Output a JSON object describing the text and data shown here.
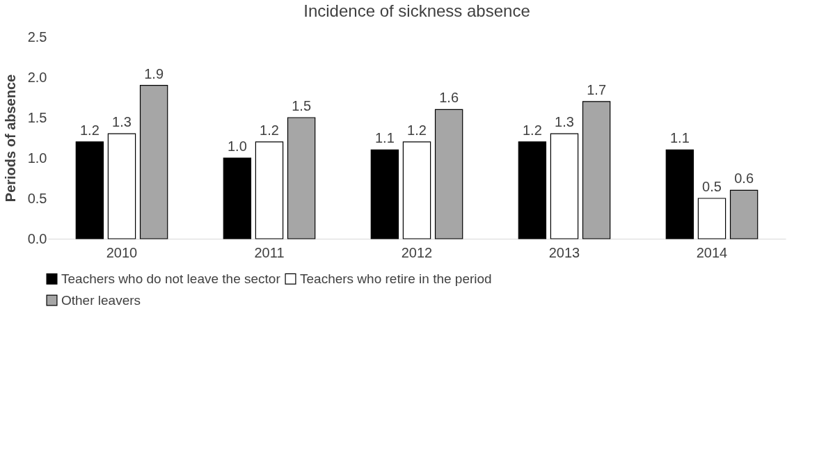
{
  "chart_data": {
    "type": "bar",
    "title": "Incidence of sickness absence",
    "ylabel": "Periods of absence",
    "categories": [
      "2010",
      "2011",
      "2012",
      "2013",
      "2014"
    ],
    "series": [
      {
        "name": "Teachers who do not leave the sector",
        "color": "#000000",
        "values": [
          1.2,
          1.0,
          1.1,
          1.2,
          1.1
        ],
        "value_labels": [
          "1.2",
          "1.0",
          "1.1",
          "1.2",
          "1.1"
        ]
      },
      {
        "name": "Teachers who retire in the period",
        "color": "#ffffff",
        "values": [
          1.3,
          1.2,
          1.2,
          1.3,
          0.5
        ],
        "value_labels": [
          "1.3",
          "1.2",
          "1.2",
          "1.3",
          "0.5"
        ]
      },
      {
        "name": "Other leavers",
        "color": "#a6a6a6",
        "values": [
          1.9,
          1.5,
          1.6,
          1.7,
          0.6
        ],
        "value_labels": [
          "1.9",
          "1.5",
          "1.6",
          "1.7",
          "0.6"
        ]
      }
    ],
    "ylim": [
      0,
      2.5
    ],
    "yticks": [
      {
        "value": 0,
        "label": "0.0"
      },
      {
        "value": 0.5,
        "label": "0.5"
      },
      {
        "value": 1,
        "label": "1.0"
      },
      {
        "value": 1.5,
        "label": "1.5"
      },
      {
        "value": 2,
        "label": "2.0"
      },
      {
        "value": 2.5,
        "label": "2.5"
      }
    ],
    "grid": false,
    "legend": "bottom"
  }
}
